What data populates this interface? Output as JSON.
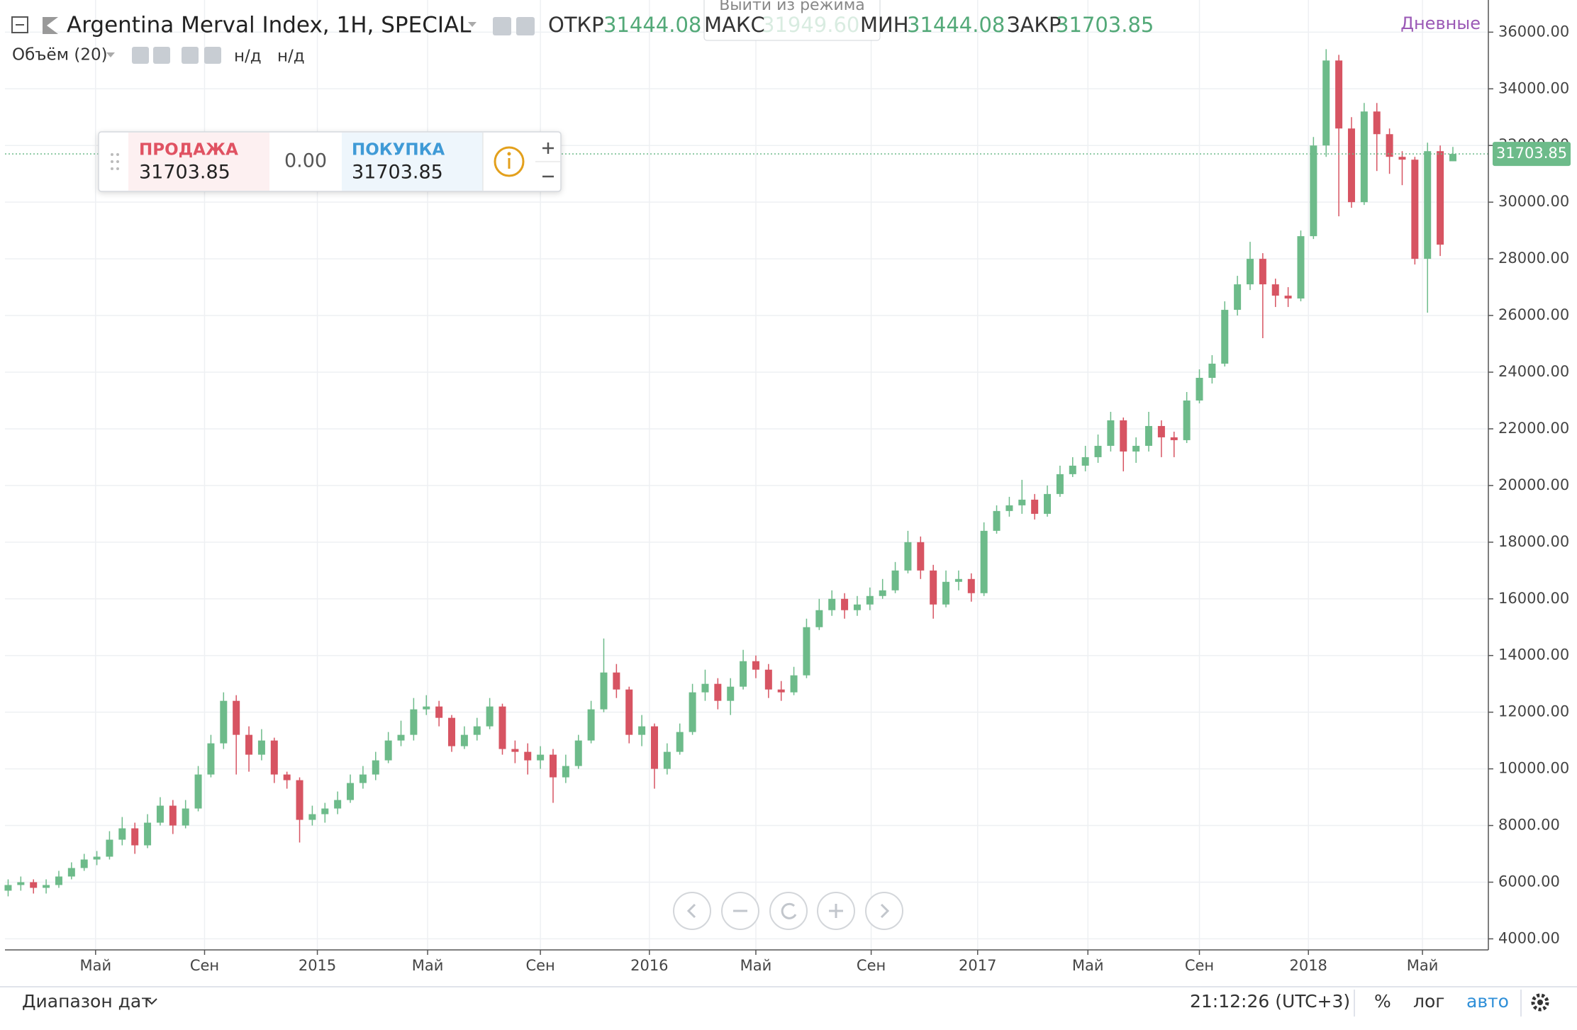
{
  "header": {
    "title": "Argentina Merval Index, 1H, SPECIAL",
    "open_label": "ОТКР",
    "high_label": "МАКС",
    "low_label": "МИН",
    "close_label": "ЗАКР",
    "mode": "Дневные",
    "tooltip": "Выйти из режима"
  },
  "volume": {
    "label": "Объём (20)",
    "values": [
      "н/д",
      "н/д"
    ]
  },
  "trade": {
    "sell_label": "ПРОДАЖА",
    "spread": "0.00",
    "buy_label": "ПОКУПКА"
  },
  "footer": {
    "range": "Диапазон дат",
    "time": "21:12:26 (UTC+3)",
    "percent": "%",
    "log": "лог",
    "auto": "авто"
  },
  "chart_data": {
    "type": "candlestick",
    "up_color": "#6dbb8a",
    "down_color": "#d75462",
    "grid": true,
    "xlim": [
      -0.25,
      116.8
    ],
    "ylim": [
      3610,
      37135
    ],
    "xticks": [
      {
        "value": 6.9,
        "label": "Май"
      },
      {
        "value": 15.5,
        "label": "Сен"
      },
      {
        "value": 24.4,
        "label": "2015"
      },
      {
        "value": 33.1,
        "label": "Май"
      },
      {
        "value": 42.0,
        "label": "Сен"
      },
      {
        "value": 50.6,
        "label": "2016"
      },
      {
        "value": 59.0,
        "label": "Май"
      },
      {
        "value": 68.1,
        "label": "Сен"
      },
      {
        "value": 76.5,
        "label": "2017"
      },
      {
        "value": 85.2,
        "label": "Май"
      },
      {
        "value": 94.0,
        "label": "Сен"
      },
      {
        "value": 102.6,
        "label": "2018"
      },
      {
        "value": 111.6,
        "label": "Май"
      }
    ],
    "yticks": [
      {
        "value": 4000,
        "label": "4000.00"
      },
      {
        "value": 6000,
        "label": "6000.00"
      },
      {
        "value": 8000,
        "label": "8000.00"
      },
      {
        "value": 10000,
        "label": "10000.00"
      },
      {
        "value": 12000,
        "label": "12000.00"
      },
      {
        "value": 14000,
        "label": "14000.00"
      },
      {
        "value": 16000,
        "label": "16000.00"
      },
      {
        "value": 18000,
        "label": "18000.00"
      },
      {
        "value": 20000,
        "label": "20000.00"
      },
      {
        "value": 22000,
        "label": "22000.00"
      },
      {
        "value": 24000,
        "label": "24000.00"
      },
      {
        "value": 26000,
        "label": "26000.00"
      },
      {
        "value": 28000,
        "label": "28000.00"
      },
      {
        "value": 30000,
        "label": "30000.00"
      },
      {
        "value": 32000,
        "label": "32000.00"
      },
      {
        "value": 34000,
        "label": "34000.00"
      },
      {
        "value": 36000,
        "label": "36000.00"
      }
    ],
    "last_labels": {
      "open": "31444.08",
      "high": "31949.60",
      "low": "31444.08",
      "close": "31703.85"
    },
    "open": [
      5700,
      5900,
      6000,
      5800,
      5900,
      6200,
      6500,
      6800,
      6900,
      7500,
      7900,
      7300,
      8100,
      8700,
      8000,
      8600,
      9800,
      10900,
      12400,
      11200,
      10500,
      11000,
      9800,
      9600,
      8200,
      8400,
      8600,
      8900,
      9500,
      9800,
      10300,
      11000,
      11200,
      12100,
      12200,
      11800,
      10800,
      11200,
      11500,
      12200,
      10700,
      10600,
      10300,
      10500,
      9700,
      10100,
      11000,
      12100,
      13400,
      12800,
      11200,
      11500,
      10000,
      10600,
      11300,
      12700,
      13000,
      12400,
      12900,
      13800,
      13500,
      12800,
      12700,
      13300,
      15000,
      15600,
      16000,
      15600,
      15800,
      16100,
      16300,
      17000,
      18000,
      17000,
      15800,
      16600,
      16700,
      16200,
      18400,
      19100,
      19300,
      19500,
      19000,
      19700,
      20400,
      20700,
      21000,
      21400,
      22300,
      21200,
      21400,
      22100,
      21700,
      21600,
      23000,
      23800,
      24300,
      26200,
      27100,
      28000,
      27100,
      26700,
      26600,
      28800,
      32000,
      35000,
      32600,
      30000,
      33200,
      32400,
      31600,
      31500,
      28000,
      31800,
      31444.08
    ],
    "high": [
      6100,
      6200,
      6100,
      6100,
      6400,
      6700,
      7000,
      7100,
      7800,
      8300,
      8100,
      8400,
      9000,
      8900,
      8900,
      10100,
      11200,
      12700,
      12600,
      11500,
      11400,
      11100,
      9900,
      9700,
      8700,
      8800,
      9200,
      9800,
      10100,
      10600,
      11300,
      11700,
      12500,
      12600,
      12400,
      11900,
      11500,
      11800,
      12500,
      12300,
      11000,
      10900,
      10800,
      10700,
      10500,
      11200,
      12400,
      14600,
      13700,
      12900,
      11900,
      11600,
      10900,
      11600,
      13000,
      13500,
      13200,
      13200,
      14200,
      14000,
      13700,
      13100,
      13600,
      15300,
      16000,
      16300,
      16200,
      16100,
      16400,
      16700,
      17300,
      18400,
      18200,
      17200,
      17000,
      17000,
      16900,
      18700,
      19300,
      19600,
      20200,
      19700,
      20000,
      20700,
      21000,
      21400,
      21800,
      22600,
      22400,
      21700,
      22600,
      22300,
      21900,
      23300,
      24100,
      24600,
      26500,
      27400,
      28600,
      28200,
      27300,
      27000,
      29000,
      32300,
      35400,
      35200,
      33000,
      33500,
      33500,
      32600,
      31800,
      31600,
      32100,
      32000,
      31949.6
    ],
    "low": [
      5500,
      5700,
      5600,
      5600,
      5800,
      6100,
      6400,
      6600,
      6800,
      7300,
      7000,
      7200,
      8000,
      7700,
      7900,
      8500,
      9700,
      10700,
      9800,
      9900,
      10300,
      9500,
      9300,
      7400,
      8000,
      8100,
      8400,
      8800,
      9300,
      9600,
      10200,
      10800,
      11000,
      11900,
      11500,
      10600,
      10700,
      11000,
      11400,
      10500,
      10200,
      9800,
      10000,
      8800,
      9500,
      10000,
      10900,
      12000,
      12500,
      10900,
      10800,
      9300,
      9800,
      10500,
      11200,
      12400,
      12100,
      11900,
      12800,
      13200,
      12500,
      12400,
      12600,
      13200,
      14900,
      15400,
      15300,
      15400,
      15600,
      16000,
      16200,
      16900,
      16700,
      15300,
      15700,
      16300,
      15900,
      16100,
      18300,
      18900,
      19000,
      18800,
      18900,
      19600,
      20300,
      20500,
      20800,
      21200,
      20500,
      20800,
      21200,
      21000,
      21000,
      21500,
      22900,
      23600,
      24200,
      26000,
      26900,
      25200,
      26300,
      26300,
      26500,
      28700,
      31600,
      29500,
      29800,
      29900,
      31100,
      31000,
      30600,
      27800,
      26100,
      28100,
      31444.08
    ],
    "close": [
      5900,
      6000,
      5800,
      5900,
      6200,
      6500,
      6800,
      6900,
      7500,
      7900,
      7300,
      8100,
      8700,
      8000,
      8600,
      9800,
      10900,
      12400,
      11200,
      10500,
      11000,
      9800,
      9600,
      8200,
      8400,
      8600,
      8900,
      9500,
      9800,
      10300,
      11000,
      11200,
      12100,
      12200,
      11800,
      10800,
      11200,
      11500,
      12200,
      10700,
      10600,
      10300,
      10500,
      9700,
      10100,
      11000,
      12100,
      13400,
      12800,
      11200,
      11500,
      10000,
      10600,
      11300,
      12700,
      13000,
      12400,
      12900,
      13800,
      13500,
      12800,
      12700,
      13300,
      15000,
      15600,
      16000,
      15600,
      15800,
      16100,
      16300,
      17000,
      18000,
      17000,
      15800,
      16600,
      16700,
      16200,
      18400,
      19100,
      19300,
      19500,
      19000,
      19700,
      20400,
      20700,
      21000,
      21400,
      22300,
      21200,
      21400,
      22100,
      21700,
      21600,
      23000,
      23800,
      24300,
      26200,
      27100,
      28000,
      27100,
      26700,
      26600,
      28800,
      32000,
      35000,
      32600,
      30000,
      33200,
      32400,
      31600,
      31500,
      28000,
      31800,
      28500,
      31703.85
    ]
  }
}
